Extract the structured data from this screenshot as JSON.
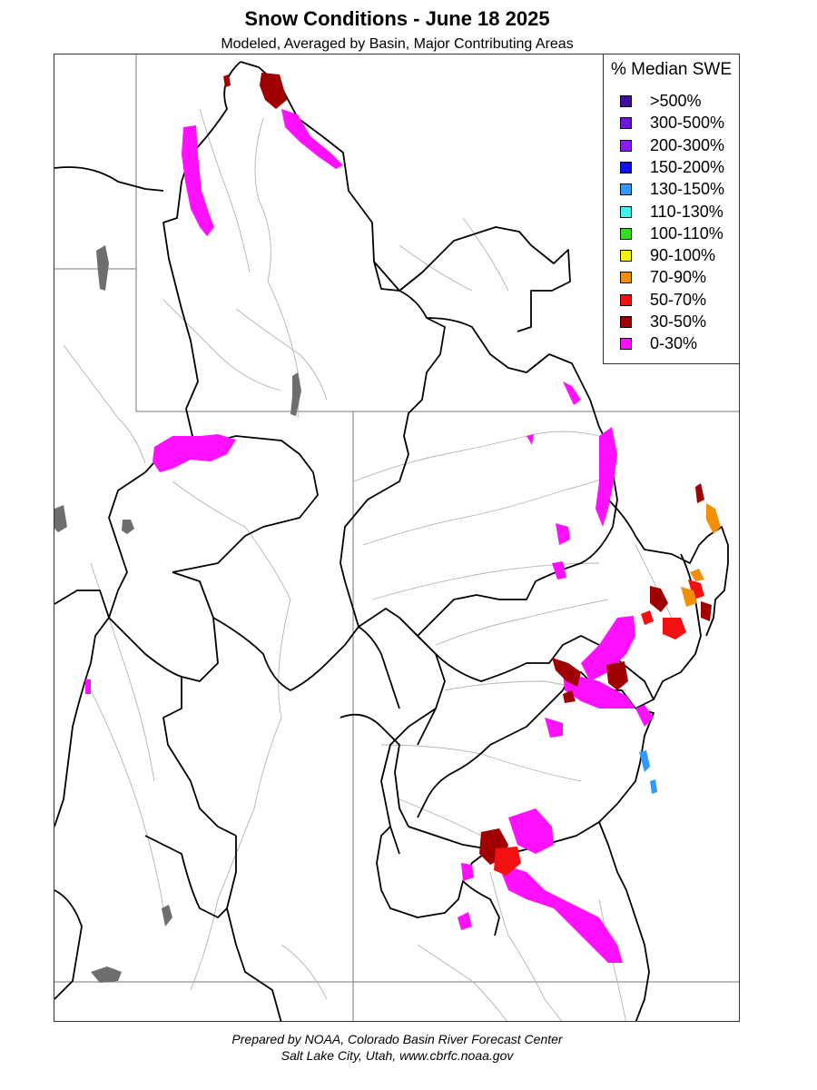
{
  "title": "Snow Conditions - June 18 2025",
  "subtitle": "Modeled, Averaged by Basin, Major Contributing Areas",
  "legend": {
    "title": "% Median SWE",
    "items": [
      {
        "label": ">500%",
        "color": "#3f0f9e"
      },
      {
        "label": "300-500%",
        "color": "#6a18e0"
      },
      {
        "label": "200-300%",
        "color": "#8b1cf5"
      },
      {
        "label": "150-200%",
        "color": "#1010f0"
      },
      {
        "label": "130-150%",
        "color": "#3399ff"
      },
      {
        "label": "110-130%",
        "color": "#44f2f2"
      },
      {
        "label": "100-110%",
        "color": "#33dd22"
      },
      {
        "label": "90-100%",
        "color": "#f4f40c"
      },
      {
        "label": "70-90%",
        "color": "#f28e08"
      },
      {
        "label": "50-70%",
        "color": "#f41010"
      },
      {
        "label": "30-50%",
        "color": "#a00000"
      },
      {
        "label": "0-30%",
        "color": "#ff10ff"
      }
    ]
  },
  "credits": {
    "line1": "Prepared by NOAA, Colorado Basin River Forecast Center",
    "line2": "Salt Lake City, Utah, www.cbrfc.noaa.gov"
  }
}
